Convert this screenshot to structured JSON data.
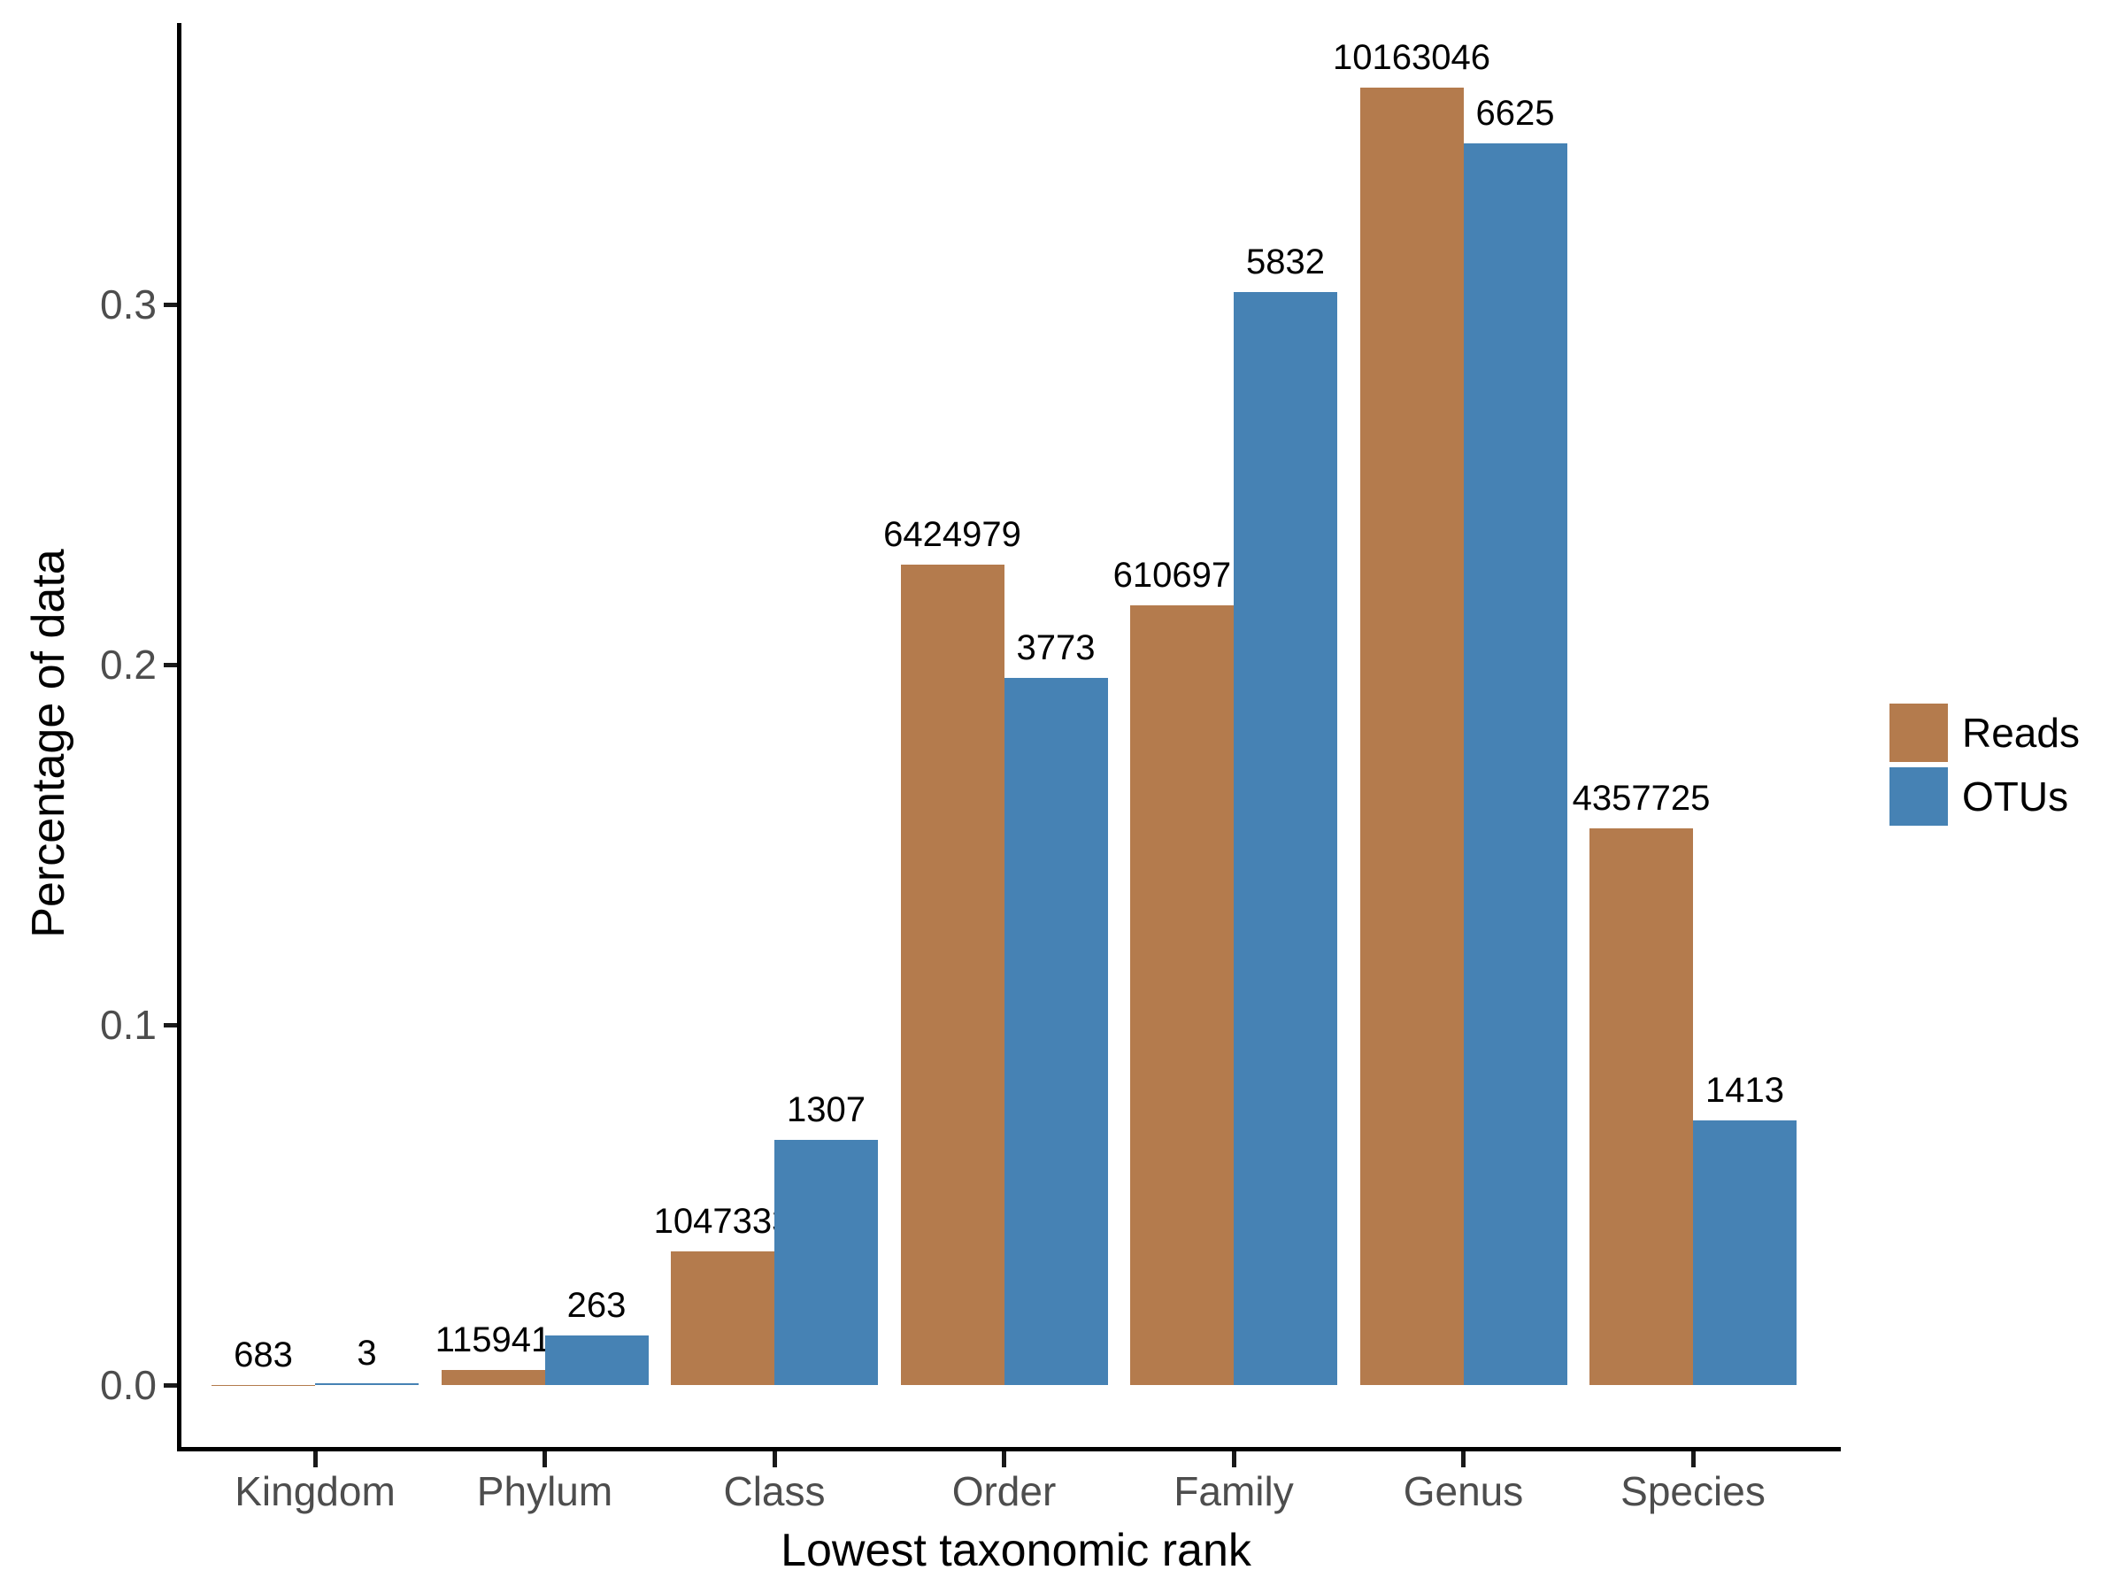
{
  "figure": {
    "background": "#ffffff"
  },
  "axes": {
    "x_title": "Lowest taxonomic rank",
    "y_title": "Percentage of data"
  },
  "chart_data": {
    "type": "bar",
    "title": "",
    "xlabel": "Lowest taxonomic rank",
    "ylabel": "Percentage of data",
    "categories": [
      "Kingdom",
      "Phylum",
      "Class",
      "Order",
      "Family",
      "Genus",
      "Species"
    ],
    "series": [
      {
        "name": "Reads",
        "color": "#B47B4D",
        "counts": [
          683,
          115941,
          1047333,
          6424979,
          6106971,
          10163046,
          4357725
        ],
        "count_labels": [
          "683",
          "115941",
          "1047333",
          "6424979",
          "6106971",
          "10163046",
          "4357725"
        ],
        "proportions": [
          2.42e-05,
          0.004109,
          0.0371176,
          0.2277015,
          0.2164312,
          0.3601785,
          0.1544379
        ]
      },
      {
        "name": "OTUs",
        "color": "#4682B4",
        "counts": [
          3,
          263,
          1307,
          3773,
          5832,
          6625,
          1413
        ],
        "count_labels": [
          "3",
          "263",
          "1307",
          "3773",
          "5832",
          "6625",
          "1413"
        ],
        "proportions": [
          0.0001561,
          0.0136865,
          0.0680162,
          0.1963468,
          0.3034971,
          0.3447648,
          0.0735325
        ]
      }
    ],
    "bar_value_labels": "raw counts shown above each bar",
    "y_ticks": [
      "0.0",
      "0.1",
      "0.2",
      "0.3"
    ],
    "y_tick_values": [
      0.0,
      0.1,
      0.2,
      0.3
    ],
    "ylim": [
      0,
      0.378
    ],
    "grid": false,
    "legend_position": "right",
    "legend_labels": [
      "Reads",
      "OTUs"
    ]
  },
  "colors": {
    "reads_bar": "#B47B4D",
    "otus_bar": "#4682B4",
    "axis_line": "#000000",
    "tick_label": "#4d4d4d",
    "bar_label": "#000000"
  }
}
